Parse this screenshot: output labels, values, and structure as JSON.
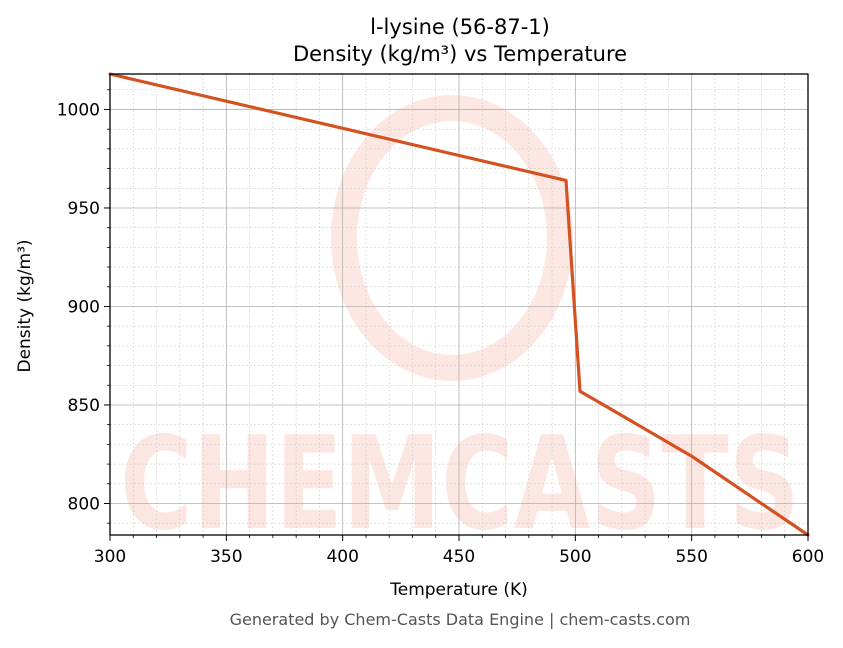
{
  "chart_data": {
    "type": "line",
    "title": "l-lysine (56-87-1)",
    "subtitle": "Density (kg/m³) vs Temperature",
    "xlabel": "Temperature (K)",
    "ylabel": "Density (kg/m³)",
    "xlim": [
      300,
      600
    ],
    "ylim": [
      784,
      1018
    ],
    "xticks": [
      300,
      350,
      400,
      450,
      500,
      550,
      600
    ],
    "yticks": [
      800,
      850,
      900,
      950,
      1000
    ],
    "grid": true,
    "series": [
      {
        "color": "#d4521f",
        "x": [
          300,
          496,
          502,
          550,
          600
        ],
        "y": [
          1018,
          964,
          857,
          824,
          784
        ]
      }
    ],
    "watermark": "CHEMCASTS",
    "footer": "Generated by Chem-Casts Data Engine | chem-casts.com"
  }
}
